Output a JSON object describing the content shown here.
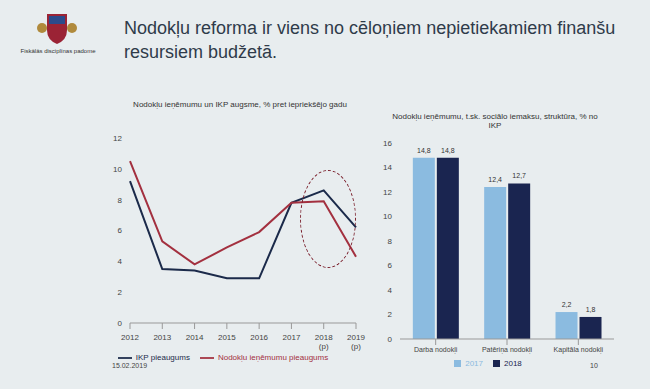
{
  "slide": {
    "title": "Nodokļu reforma ir viens no cēloņiem nepietiekamiem finanšu resursiem budžetā.",
    "organization": "Fiskālās disciplīnas padome",
    "date": "15.02.2019",
    "page": "10"
  },
  "chart_data": [
    {
      "type": "line",
      "title": "Nodokļu ieņēmumu un IKP augsme, % pret iepriekšējo gadu",
      "categories": [
        "2012",
        "2013",
        "2014",
        "2015",
        "2016",
        "2017",
        "2018 (p)",
        "2019 (p)"
      ],
      "series": [
        {
          "name": "IKP pieaugums",
          "color": "#1b2a4a",
          "marker": "none",
          "line_style": "solid",
          "values": [
            9.2,
            3.5,
            3.4,
            2.9,
            2.9,
            7.8,
            8.6,
            6.2
          ]
        },
        {
          "name": "Nodokļu ieņēmumu pieaugums",
          "color": "#a3303f",
          "marker": "none",
          "line_style": "solid",
          "values": [
            10.5,
            5.3,
            3.8,
            4.9,
            5.9,
            7.8,
            7.9,
            4.3
          ]
        }
      ],
      "ylim": [
        0,
        12
      ],
      "yticks": [
        0,
        2,
        4,
        6,
        8,
        10,
        12
      ],
      "grid": false,
      "legend": "bottom"
    },
    {
      "type": "bar",
      "title": "Nodokļu ieņēmumu, t.sk. sociālo iemaksu, struktūra, % no IKP",
      "categories": [
        "Darba nodokļi",
        "Patēriņa nodokļi",
        "Kapitāla nodokļi"
      ],
      "series": [
        {
          "name": "2017",
          "color": "#8bbbe0",
          "values": [
            14.8,
            12.4,
            2.2
          ],
          "value_labels": [
            "14,8",
            "12,4",
            "2,2"
          ]
        },
        {
          "name": "2018",
          "color": "#1a2550",
          "values": [
            14.8,
            12.7,
            1.8
          ],
          "value_labels": [
            "14,8",
            "12,7",
            "1,8"
          ]
        }
      ],
      "ylim": [
        0,
        16
      ],
      "yticks": [
        0,
        2,
        4,
        6,
        8,
        10,
        12,
        14,
        16
      ],
      "grid": false,
      "legend": "bottom",
      "data_labels": true
    }
  ]
}
